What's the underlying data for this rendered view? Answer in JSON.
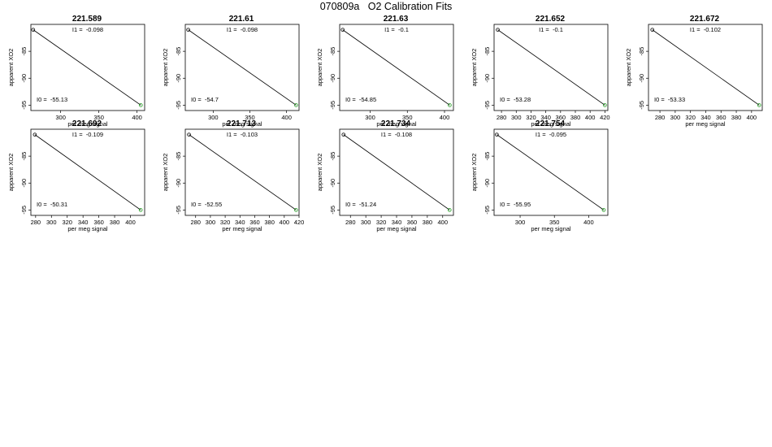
{
  "page": {
    "title": "070809a   O2 Calibration Fits"
  },
  "chart_data": [
    {
      "type": "line",
      "title": "221.589",
      "xlabel": "per meg signal",
      "ylabel": "apparent XO2",
      "xlim": [
        261,
        410
      ],
      "ylim": [
        -96,
        -80
      ],
      "xticks": [
        300,
        350,
        400
      ],
      "yticks": [
        -85,
        -90,
        -95
      ],
      "x": [
        264,
        405
      ],
      "y": [
        -81,
        -95
      ],
      "annotations": {
        "I1": "I1 =  -0.098",
        "I0": "I0 =  -55.13"
      }
    },
    {
      "type": "line",
      "title": "221.61",
      "xlabel": "per meg signal",
      "ylabel": "apparent XO2",
      "xlim": [
        262,
        417
      ],
      "ylim": [
        -96,
        -80
      ],
      "xticks": [
        300,
        350,
        400
      ],
      "yticks": [
        -85,
        -90,
        -95
      ],
      "x": [
        266,
        413
      ],
      "y": [
        -81,
        -95
      ],
      "annotations": {
        "I1": "I1 =  -0.098",
        "I0": "I0 =  -54.7"
      }
    },
    {
      "type": "line",
      "title": "221.63",
      "xlabel": "per meg signal",
      "ylabel": "apparent XO2",
      "xlim": [
        259,
        412
      ],
      "ylim": [
        -96,
        -80
      ],
      "xticks": [
        300,
        350,
        400
      ],
      "yticks": [
        -85,
        -90,
        -95
      ],
      "x": [
        263,
        407
      ],
      "y": [
        -81,
        -95
      ],
      "annotations": {
        "I1": "I1 =  -0.1",
        "I0": "I0 =  -54.85"
      }
    },
    {
      "type": "line",
      "title": "221.652",
      "xlabel": "per meg signal",
      "ylabel": "apparent XO2",
      "xlim": [
        270,
        424
      ],
      "ylim": [
        -96,
        -80
      ],
      "xticks": [
        280,
        300,
        320,
        340,
        360,
        380,
        400,
        420
      ],
      "yticks": [
        -85,
        -90,
        -95
      ],
      "x": [
        275,
        420
      ],
      "y": [
        -81,
        -95
      ],
      "annotations": {
        "I1": "I1 =  -0.1",
        "I0": "I0 =  -53.28"
      }
    },
    {
      "type": "line",
      "title": "221.672",
      "xlabel": "per meg signal",
      "ylabel": "apparent XO2",
      "xlim": [
        265,
        414
      ],
      "ylim": [
        -96,
        -80
      ],
      "xticks": [
        280,
        300,
        320,
        340,
        360,
        380,
        400
      ],
      "yticks": [
        -85,
        -90,
        -95
      ],
      "x": [
        270,
        410
      ],
      "y": [
        -81,
        -95
      ],
      "annotations": {
        "I1": "I1 =  -0.102",
        "I0": "I0 =  -53.33"
      }
    },
    {
      "type": "line",
      "title": "221.692",
      "xlabel": "per meg signal",
      "ylabel": "apparent XO2",
      "xlim": [
        274,
        418
      ],
      "ylim": [
        -96,
        -80
      ],
      "xticks": [
        280,
        300,
        320,
        340,
        360,
        380,
        400
      ],
      "yticks": [
        -85,
        -90,
        -95
      ],
      "x": [
        279,
        413
      ],
      "y": [
        -81,
        -95
      ],
      "annotations": {
        "I1": "I1 =  -0.109",
        "I0": "I0 =  -50.31"
      }
    },
    {
      "type": "line",
      "title": "221.713",
      "xlabel": "per meg signal",
      "ylabel": "apparent XO2",
      "xlim": [
        266,
        420
      ],
      "ylim": [
        -96,
        -80
      ],
      "xticks": [
        280,
        300,
        320,
        340,
        360,
        380,
        400,
        420
      ],
      "yticks": [
        -85,
        -90,
        -95
      ],
      "x": [
        271,
        416
      ],
      "y": [
        -81,
        -95
      ],
      "annotations": {
        "I1": "I1 =  -0.103",
        "I0": "I0 =  -52.55"
      }
    },
    {
      "type": "line",
      "title": "221.734",
      "xlabel": "per meg signal",
      "ylabel": "apparent XO2",
      "xlim": [
        266,
        414
      ],
      "ylim": [
        -96,
        -80
      ],
      "xticks": [
        280,
        300,
        320,
        340,
        360,
        380,
        400
      ],
      "yticks": [
        -85,
        -90,
        -95
      ],
      "x": [
        271,
        409
      ],
      "y": [
        -81,
        -95
      ],
      "annotations": {
        "I1": "I1 =  -0.108",
        "I0": "I0 =  -51.24"
      }
    },
    {
      "type": "line",
      "title": "221.754",
      "xlabel": "per meg signal",
      "ylabel": "apparent XO2",
      "xlim": [
        262,
        428
      ],
      "ylim": [
        -96,
        -80
      ],
      "xticks": [
        300,
        350,
        400
      ],
      "yticks": [
        -85,
        -90,
        -95
      ],
      "x": [
        266,
        422
      ],
      "y": [
        -81,
        -95
      ],
      "annotations": {
        "I1": "I1 =  -0.095",
        "I0": "I0 =  -55.95"
      }
    }
  ],
  "colors": {
    "line": "#000000",
    "first_point": "#000000",
    "last_point": "#1f9e1f"
  }
}
